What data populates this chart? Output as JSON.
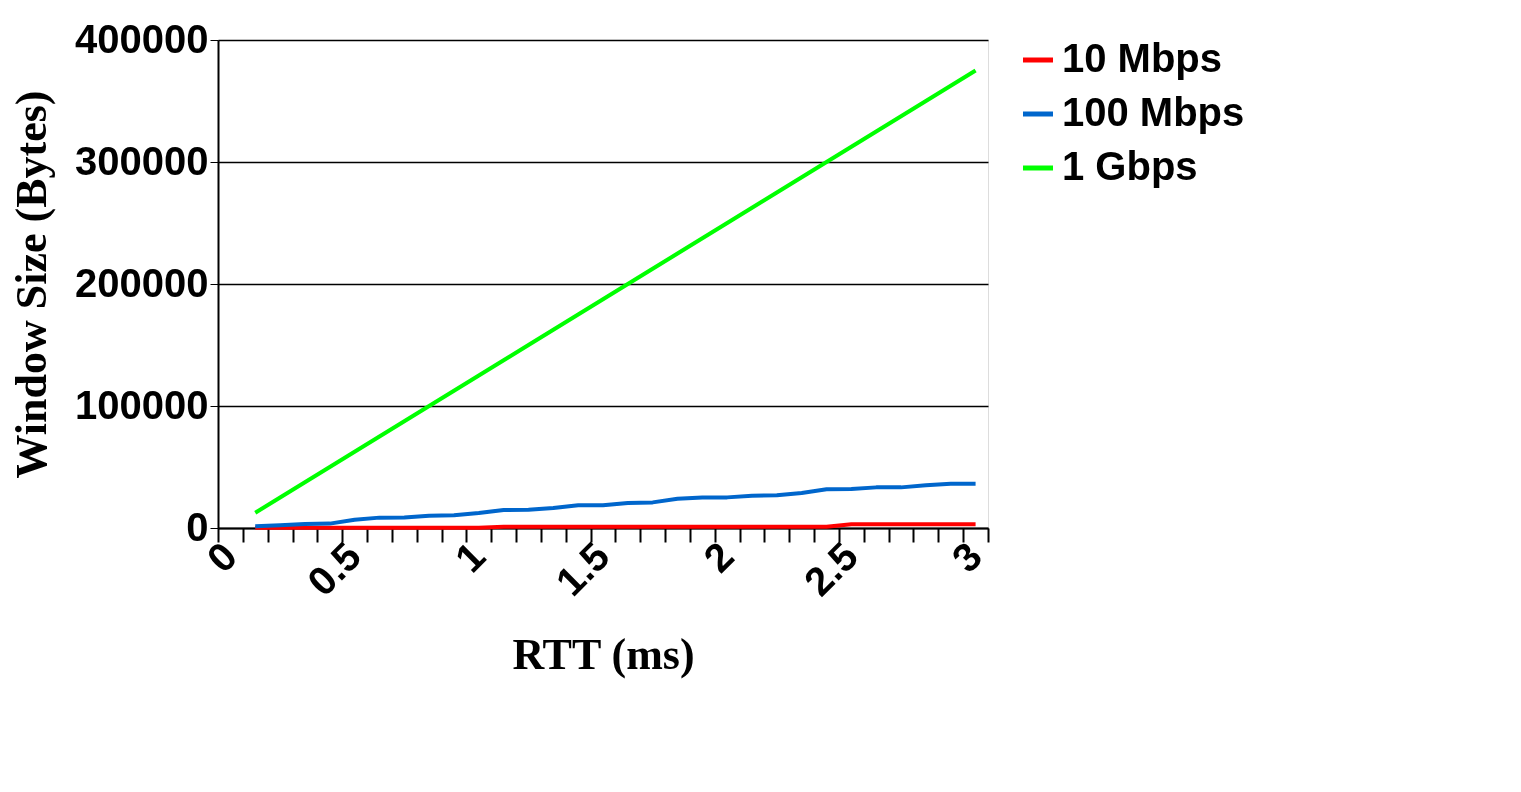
{
  "chart_data": {
    "type": "line",
    "xlabel": "RTT (ms)",
    "ylabel": "Window Size (Bytes)",
    "categories": [
      "0",
      null,
      null,
      null,
      null,
      "0.5",
      null,
      null,
      null,
      null,
      "1",
      null,
      null,
      null,
      null,
      "1.5",
      null,
      null,
      null,
      null,
      "2",
      null,
      null,
      null,
      null,
      "2.5",
      null,
      null,
      null,
      null,
      "3"
    ],
    "series": [
      {
        "name": "10 Mbps",
        "color": "#ff0000",
        "values": [
          null,
          300,
          300,
          300,
          300,
          300,
          300,
          300,
          300,
          300,
          300,
          1000,
          1000,
          1000,
          1000,
          1000,
          1000,
          1000,
          1000,
          1000,
          1000,
          1000,
          1000,
          1000,
          1000,
          3000,
          3000,
          3000,
          3000,
          3000,
          3000
        ]
      },
      {
        "name": "100 Mbps",
        "color": "#0066cc",
        "values": [
          null,
          1400,
          2200,
          3300,
          3600,
          6800,
          8500,
          8700,
          10100,
          10400,
          12300,
          14800,
          15000,
          16400,
          18600,
          18600,
          20500,
          21000,
          24000,
          25100,
          25100,
          26500,
          26800,
          28700,
          31700,
          31900,
          33300,
          33300,
          35000,
          36300,
          36300
        ]
      },
      {
        "name": "1 Gbps",
        "color": "#00ff00",
        "values": [
          null,
          12500,
          25000,
          37500,
          50000,
          62500,
          75000,
          87500,
          100000,
          112500,
          125000,
          137500,
          150000,
          162500,
          175000,
          187500,
          200000,
          212500,
          225000,
          237500,
          250000,
          262500,
          275000,
          287500,
          300000,
          312500,
          325000,
          337500,
          350000,
          362500,
          375000
        ]
      }
    ],
    "ylim": [
      0,
      400000
    ],
    "yticks": [
      0,
      100000,
      200000,
      300000,
      400000
    ],
    "grid": "y",
    "legend": "right",
    "marker": "none",
    "line_style": "solid"
  }
}
